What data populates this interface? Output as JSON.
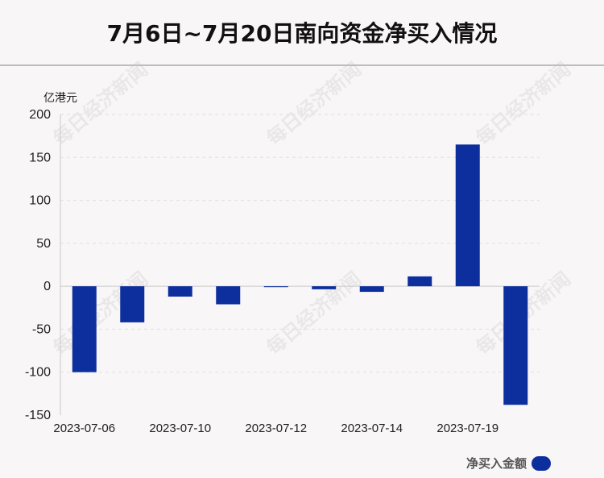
{
  "title": "7月6日~7月20日南向资金净买入情况",
  "watermark": "每日经济新闻",
  "colors": {
    "bar": "#0d2f9e",
    "grid": "#e1dfe0",
    "axis": "#c9c9c9"
  },
  "chart_data": {
    "type": "bar",
    "ylabel": "亿港元",
    "ylim": [
      -150,
      200
    ],
    "yticks": [
      200,
      150,
      100,
      50,
      0,
      -50,
      -100,
      -150
    ],
    "x_tick_labels": [
      "2023-07-06",
      "2023-07-10",
      "2023-07-12",
      "2023-07-14",
      "2023-07-19"
    ],
    "x_tick_positions": [
      0,
      2,
      4,
      6,
      8
    ],
    "values": [
      -100,
      -42,
      -12,
      -21,
      -1,
      -3.5,
      -6.5,
      11.5,
      165,
      -138
    ],
    "series": [
      {
        "name": "净买入金额",
        "values": [
          -100,
          -42,
          -12,
          -21,
          -1,
          -3.5,
          -6.5,
          11.5,
          165,
          -138
        ]
      }
    ],
    "grid": true,
    "legend": "bottom-right"
  }
}
